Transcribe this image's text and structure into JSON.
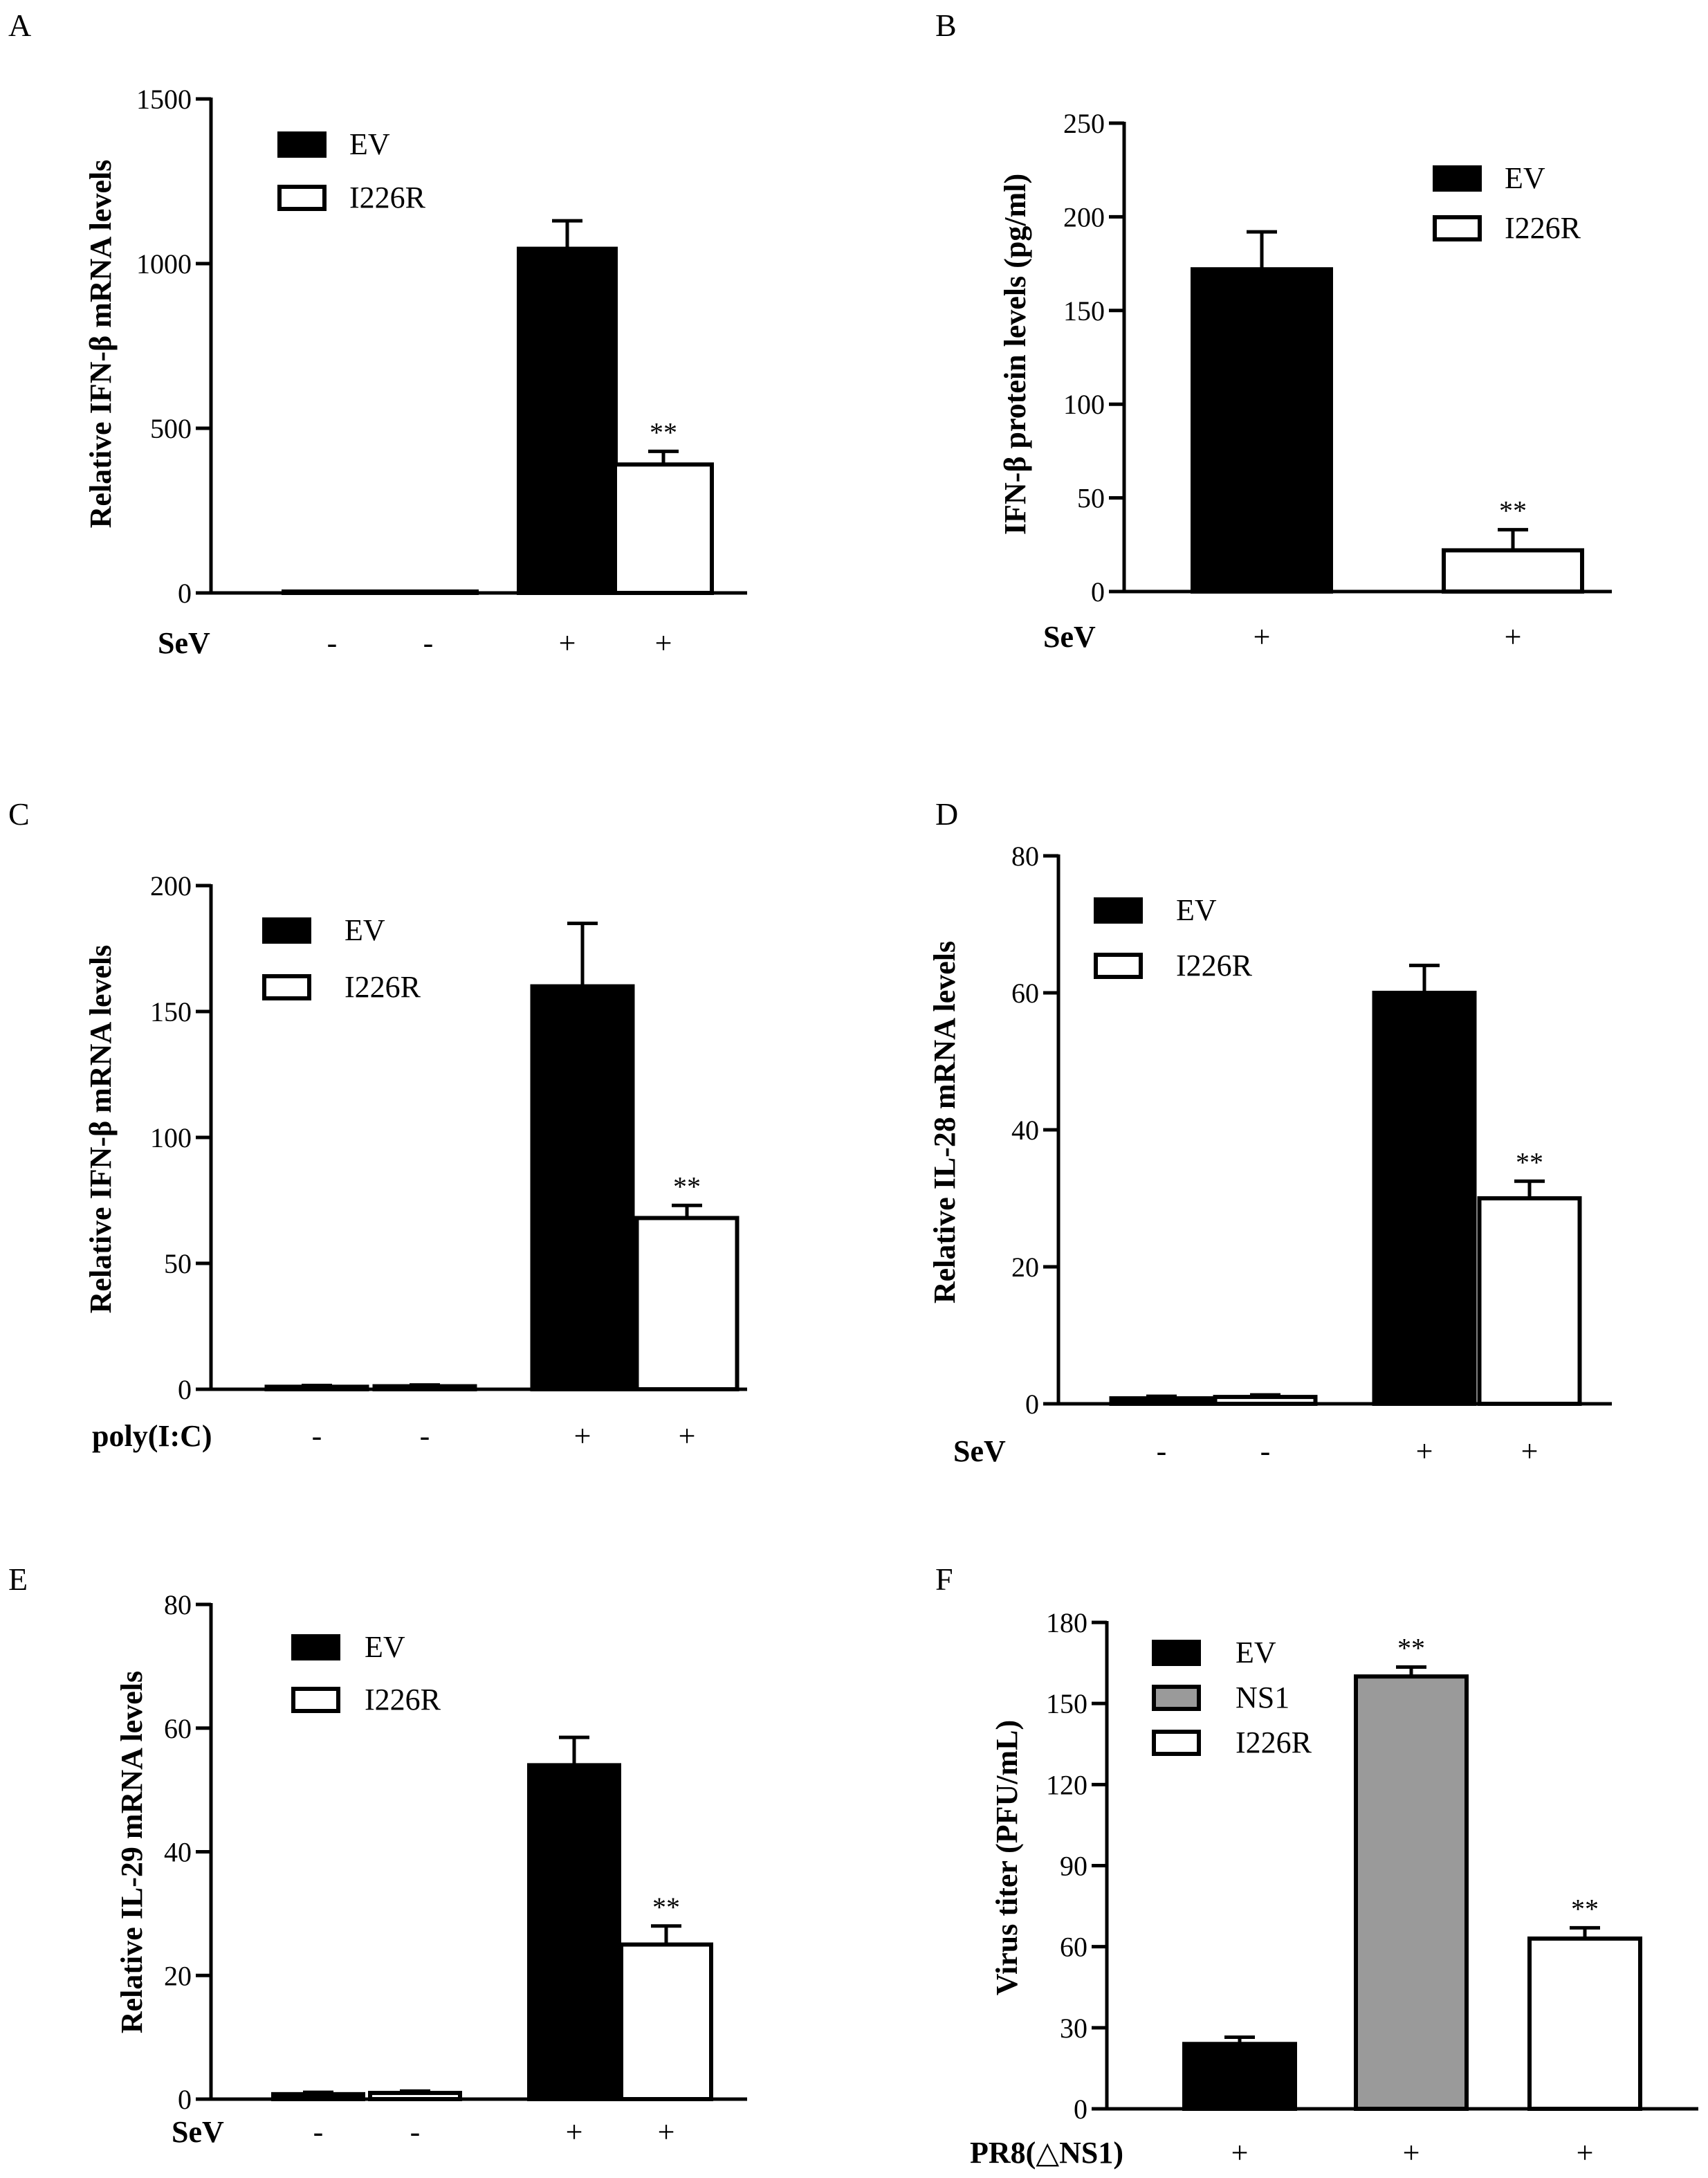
{
  "colors": {
    "EV": "#000000",
    "NS1": "#9a9a9a",
    "I226R": "#ffffff",
    "outline": "#000000"
  },
  "chart_data": [
    {
      "panel": "A",
      "type": "bar",
      "ylabel": "Relative IFN-β mRNA levels",
      "ylim": [
        0,
        1500
      ],
      "yticks": [
        "0",
        "500",
        "1000",
        "1500"
      ],
      "treatment": {
        "label": "SeV",
        "signs": [
          "-",
          "-",
          "+",
          "+"
        ]
      },
      "legend": [
        "EV",
        "I226R"
      ],
      "bars": [
        {
          "group": "EV",
          "value": 1,
          "error": 0,
          "sig": ""
        },
        {
          "group": "I226R",
          "value": 1,
          "error": 0,
          "sig": ""
        },
        {
          "group": "EV",
          "value": 1045,
          "error": 85,
          "sig": ""
        },
        {
          "group": "I226R",
          "value": 390,
          "error": 40,
          "sig": "**"
        }
      ]
    },
    {
      "panel": "B",
      "type": "bar",
      "ylabel": "IFN-β protein levels (pg/ml)",
      "ylim": [
        0,
        250
      ],
      "yticks": [
        "0",
        "50",
        "100",
        "150",
        "200",
        "250"
      ],
      "treatment": {
        "label": "SeV",
        "signs": [
          "+",
          "+"
        ]
      },
      "legend": [
        "EV",
        "I226R"
      ],
      "bars": [
        {
          "group": "EV",
          "value": 172,
          "error": 20,
          "sig": ""
        },
        {
          "group": "I226R",
          "value": 22,
          "error": 11,
          "sig": "**"
        }
      ]
    },
    {
      "panel": "C",
      "type": "bar",
      "ylabel": "Relative IFN-β mRNA levels",
      "ylim": [
        0,
        200
      ],
      "yticks": [
        "0",
        "50",
        "100",
        "150",
        "200"
      ],
      "treatment": {
        "label": "poly(I:C)",
        "signs": [
          "-",
          "-",
          "+",
          "+"
        ]
      },
      "legend": [
        "EV",
        "I226R"
      ],
      "bars": [
        {
          "group": "EV",
          "value": 1,
          "error": 0.5,
          "sig": ""
        },
        {
          "group": "I226R",
          "value": 1.2,
          "error": 0.5,
          "sig": ""
        },
        {
          "group": "EV",
          "value": 160,
          "error": 25,
          "sig": ""
        },
        {
          "group": "I226R",
          "value": 68,
          "error": 5,
          "sig": "**"
        }
      ]
    },
    {
      "panel": "D",
      "type": "bar",
      "ylabel": "Relative IL-28 mRNA levels",
      "ylim": [
        0,
        80
      ],
      "yticks": [
        "0",
        "20",
        "40",
        "60",
        "80"
      ],
      "treatment": {
        "label": "SeV",
        "signs": [
          "-",
          "-",
          "+",
          "+"
        ]
      },
      "legend": [
        "EV",
        "I226R"
      ],
      "bars": [
        {
          "group": "EV",
          "value": 0.8,
          "error": 0.3,
          "sig": ""
        },
        {
          "group": "I226R",
          "value": 1,
          "error": 0.3,
          "sig": ""
        },
        {
          "group": "EV",
          "value": 60,
          "error": 4,
          "sig": ""
        },
        {
          "group": "I226R",
          "value": 30,
          "error": 2.5,
          "sig": "**"
        }
      ]
    },
    {
      "panel": "E",
      "type": "bar",
      "ylabel": "Relative IL-29 mRNA levels",
      "ylim": [
        0,
        80
      ],
      "yticks": [
        "0",
        "20",
        "40",
        "60",
        "80"
      ],
      "treatment": {
        "label": "SeV",
        "signs": [
          "-",
          "-",
          "+",
          "+"
        ]
      },
      "legend": [
        "EV",
        "I226R"
      ],
      "bars": [
        {
          "group": "EV",
          "value": 0.8,
          "error": 0.3,
          "sig": ""
        },
        {
          "group": "I226R",
          "value": 1,
          "error": 0.3,
          "sig": ""
        },
        {
          "group": "EV",
          "value": 54,
          "error": 4.5,
          "sig": ""
        },
        {
          "group": "I226R",
          "value": 25,
          "error": 3,
          "sig": "**"
        }
      ]
    },
    {
      "panel": "F",
      "type": "bar",
      "ylabel": "Virus titer (PFU/mL)",
      "ylim": [
        0,
        180
      ],
      "yticks": [
        "0",
        "30",
        "60",
        "90",
        "120",
        "150",
        "180"
      ],
      "treatment": {
        "label": "PR8(△NS1)",
        "signs": [
          "+",
          "+",
          "+"
        ]
      },
      "legend": [
        "EV",
        "NS1",
        "I226R"
      ],
      "bars": [
        {
          "group": "EV",
          "value": 24,
          "error": 2.5,
          "sig": ""
        },
        {
          "group": "NS1",
          "value": 160,
          "error": 3.5,
          "sig": "**"
        },
        {
          "group": "I226R",
          "value": 63,
          "error": 4,
          "sig": "**"
        }
      ]
    }
  ]
}
